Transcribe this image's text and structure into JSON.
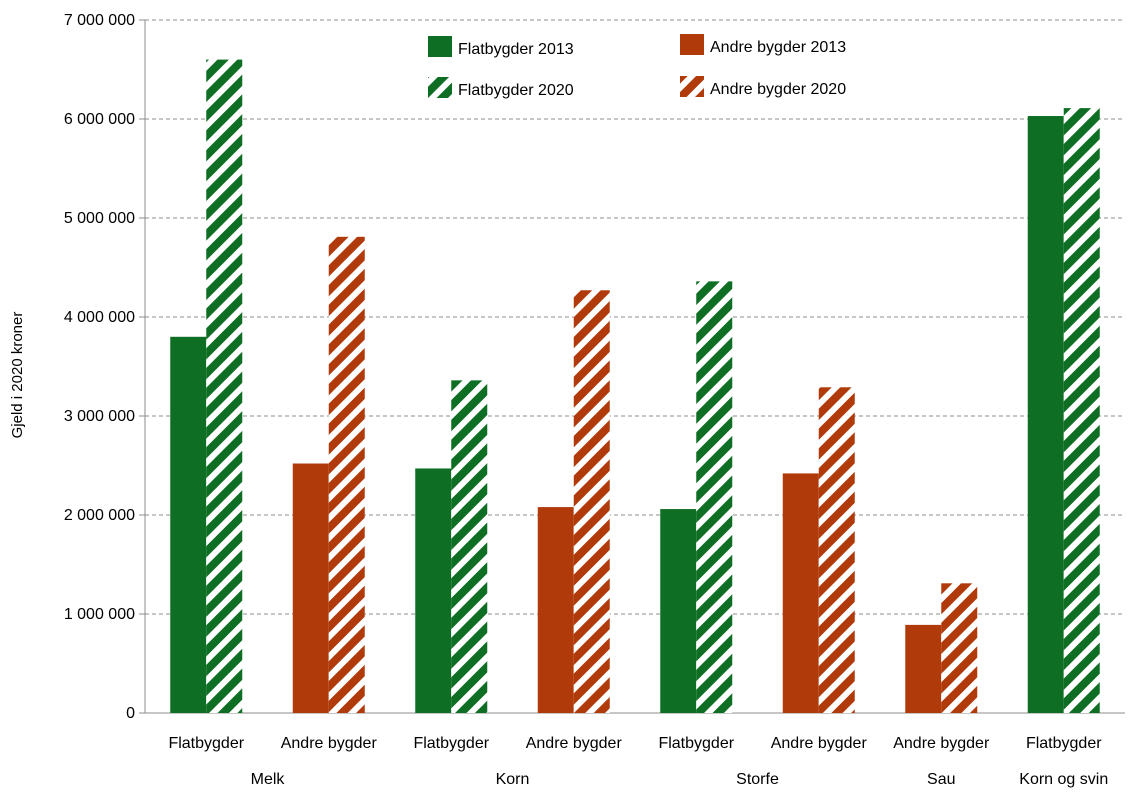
{
  "chart_data": {
    "type": "bar",
    "title": "",
    "xlabel": "",
    "ylabel": "Gjeld i 2020 kroner",
    "ylim": [
      0,
      7000000
    ],
    "yticks": [
      0,
      1000000,
      2000000,
      3000000,
      4000000,
      5000000,
      6000000,
      7000000
    ],
    "ytick_labels": [
      "0",
      "1 000 000",
      "2 000 000",
      "3 000 000",
      "4 000 000",
      "5 000 000",
      "6 000 000",
      "7 000 000"
    ],
    "grid": true,
    "legend_position": "top-center",
    "colors": {
      "flat": "#0e6e23",
      "andre": "#b03a0a"
    },
    "series": [
      {
        "name": "Flatbygder 2013",
        "region": "flat",
        "pattern": "solid"
      },
      {
        "name": "Andre bygder 2013",
        "region": "andre",
        "pattern": "solid"
      },
      {
        "name": "Flatbygder 2020",
        "region": "flat",
        "pattern": "hatched"
      },
      {
        "name": "Andre bygder 2020",
        "region": "andre",
        "pattern": "hatched"
      }
    ],
    "groups": [
      {
        "label": "Melk",
        "categories": [
          {
            "label": "Flatbygder",
            "region": "flat",
            "v2013": 3800000,
            "v2020": 6600000
          },
          {
            "label": "Andre bygder",
            "region": "andre",
            "v2013": 2520000,
            "v2020": 4810000
          }
        ]
      },
      {
        "label": "Korn",
        "categories": [
          {
            "label": "Flatbygder",
            "region": "flat",
            "v2013": 2470000,
            "v2020": 3360000
          },
          {
            "label": "Andre bygder",
            "region": "andre",
            "v2013": 2080000,
            "v2020": 4270000
          }
        ]
      },
      {
        "label": "Storfe",
        "categories": [
          {
            "label": "Flatbygder",
            "region": "flat",
            "v2013": 2060000,
            "v2020": 4360000
          },
          {
            "label": "Andre bygder",
            "region": "andre",
            "v2013": 2420000,
            "v2020": 3290000
          }
        ]
      },
      {
        "label": "Sau",
        "categories": [
          {
            "label": "Andre bygder",
            "region": "andre",
            "v2013": 890000,
            "v2020": 1310000
          }
        ]
      },
      {
        "label": "Korn og svin",
        "categories": [
          {
            "label": "Flatbygder",
            "region": "flat",
            "v2013": 6030000,
            "v2020": 6110000
          }
        ]
      }
    ]
  }
}
